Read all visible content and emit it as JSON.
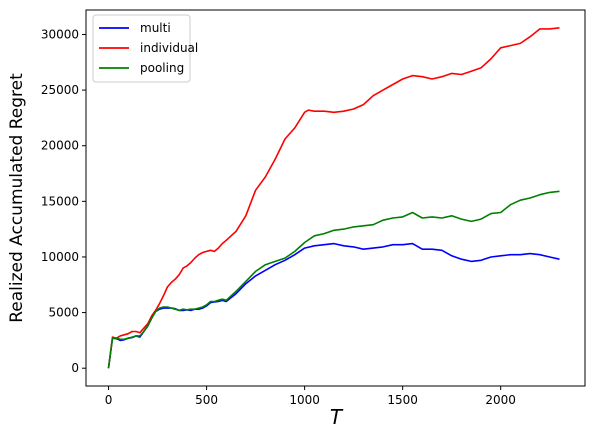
{
  "chart_data": {
    "type": "line",
    "title": "",
    "xlabel": "T",
    "ylabel": "Realized Accumulated Regret",
    "xlim": [
      -115,
      2430
    ],
    "ylim": [
      -1600,
      32200
    ],
    "xticks": [
      0,
      500,
      1000,
      1500,
      2000
    ],
    "yticks": [
      0,
      5000,
      10000,
      15000,
      20000,
      25000,
      30000
    ],
    "grid": false,
    "legend": "top-left",
    "series": [
      {
        "name": "multi",
        "color": "#0000ff",
        "x": [
          0,
          20,
          40,
          60,
          80,
          100,
          120,
          140,
          160,
          180,
          200,
          220,
          240,
          260,
          280,
          300,
          320,
          340,
          360,
          380,
          400,
          420,
          440,
          460,
          480,
          500,
          520,
          540,
          560,
          580,
          600,
          650,
          700,
          750,
          800,
          850,
          900,
          950,
          1000,
          1050,
          1100,
          1150,
          1200,
          1250,
          1300,
          1350,
          1400,
          1450,
          1500,
          1550,
          1600,
          1650,
          1700,
          1750,
          1800,
          1850,
          1900,
          1950,
          2000,
          2050,
          2100,
          2150,
          2200,
          2250,
          2300
        ],
        "y": [
          0,
          2700,
          2650,
          2500,
          2550,
          2700,
          2750,
          2900,
          2800,
          3300,
          3800,
          4500,
          5100,
          5300,
          5400,
          5400,
          5400,
          5350,
          5200,
          5200,
          5250,
          5200,
          5300,
          5300,
          5400,
          5600,
          5900,
          5950,
          6000,
          6100,
          6000,
          6700,
          7600,
          8300,
          8800,
          9300,
          9700,
          10200,
          10800,
          11000,
          11100,
          11200,
          11000,
          10900,
          10700,
          10800,
          10900,
          11100,
          11100,
          11200,
          10700,
          10700,
          10600,
          10100,
          9800,
          9600,
          9700,
          10000,
          10100,
          10200,
          10200,
          10300,
          10200,
          10000,
          9800
        ]
      },
      {
        "name": "individual",
        "color": "#ff0000",
        "x": [
          0,
          20,
          40,
          60,
          80,
          100,
          120,
          140,
          160,
          180,
          200,
          220,
          240,
          260,
          280,
          300,
          320,
          340,
          360,
          380,
          400,
          420,
          440,
          460,
          480,
          500,
          520,
          540,
          560,
          580,
          600,
          650,
          700,
          750,
          800,
          850,
          900,
          950,
          1000,
          1020,
          1050,
          1100,
          1150,
          1200,
          1250,
          1300,
          1350,
          1400,
          1450,
          1500,
          1550,
          1600,
          1650,
          1700,
          1750,
          1800,
          1850,
          1900,
          1950,
          2000,
          2050,
          2100,
          2150,
          2200,
          2250,
          2300
        ],
        "y": [
          0,
          2800,
          2700,
          2900,
          3000,
          3100,
          3300,
          3300,
          3200,
          3600,
          4000,
          4700,
          5200,
          5800,
          6500,
          7300,
          7700,
          8000,
          8400,
          9000,
          9200,
          9500,
          9900,
          10200,
          10400,
          10500,
          10600,
          10500,
          10800,
          11200,
          11500,
          12300,
          13700,
          16000,
          17200,
          18800,
          20600,
          21600,
          23000,
          23200,
          23100,
          23100,
          23000,
          23100,
          23300,
          23700,
          24500,
          25000,
          25500,
          26000,
          26300,
          26200,
          26000,
          26200,
          26500,
          26400,
          26700,
          27000,
          27800,
          28800,
          29000,
          29200,
          29800,
          30500,
          30500,
          30600
        ]
      },
      {
        "name": "pooling",
        "color": "#008000",
        "x": [
          0,
          20,
          40,
          60,
          80,
          100,
          120,
          140,
          160,
          180,
          200,
          220,
          240,
          260,
          280,
          300,
          320,
          340,
          360,
          380,
          400,
          420,
          440,
          460,
          480,
          500,
          520,
          540,
          560,
          580,
          600,
          650,
          700,
          750,
          800,
          850,
          900,
          950,
          1000,
          1050,
          1100,
          1150,
          1200,
          1250,
          1300,
          1350,
          1400,
          1450,
          1500,
          1550,
          1600,
          1650,
          1700,
          1750,
          1800,
          1850,
          1900,
          1950,
          2000,
          2050,
          2100,
          2150,
          2200,
          2250,
          2300
        ],
        "y": [
          0,
          2700,
          2700,
          2600,
          2600,
          2700,
          2800,
          2900,
          2900,
          3300,
          3800,
          4500,
          5100,
          5400,
          5500,
          5500,
          5400,
          5300,
          5200,
          5300,
          5250,
          5300,
          5300,
          5400,
          5500,
          5700,
          6000,
          6000,
          6100,
          6200,
          6100,
          6900,
          7800,
          8700,
          9300,
          9600,
          9900,
          10500,
          11300,
          11900,
          12100,
          12400,
          12500,
          12700,
          12800,
          12900,
          13300,
          13500,
          13600,
          14000,
          13500,
          13600,
          13500,
          13700,
          13400,
          13200,
          13400,
          13900,
          14000,
          14700,
          15100,
          15300,
          15600,
          15800,
          15900
        ]
      }
    ]
  }
}
